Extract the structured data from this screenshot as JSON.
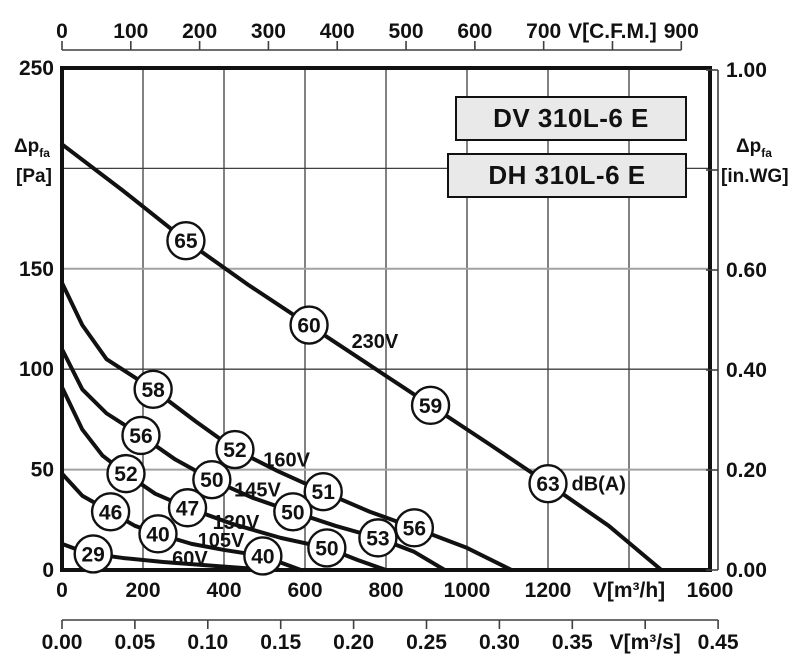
{
  "title_boxes": {
    "box1": "DV 310L-6 E",
    "box2": "DH 310L-6 E"
  },
  "left_axis_title": {
    "dp": "Δp",
    "sub": "fa",
    "unit": "[Pa]"
  },
  "right_axis_title": {
    "dp": "Δp",
    "sub": "fa",
    "unit": "[in.WG]"
  },
  "colors": {
    "curve": "#111111",
    "grid_dark": "#3f3f3f",
    "grid_light": "#a2a2a2",
    "border": "#111111",
    "box_fill": "#e9e9e9",
    "background": "#ffffff",
    "text": "#111111"
  },
  "chart_data": {
    "type": "line",
    "title": "DV 310L-6 E / DH 310L-6 E fan performance curves",
    "x_axis_bottom": {
      "label": "V[m³/h]",
      "range": [
        0,
        1600
      ],
      "tick_step": 200,
      "tick_labels": [
        "0",
        "200",
        "400",
        "600",
        "800",
        "1000",
        "1200",
        "V[m³/h]",
        "1600"
      ],
      "gridlines": true
    },
    "x_axis_bottom_secondary": {
      "label": "V[m³/s]",
      "range": [
        0,
        0.45
      ],
      "tick_step": 0.05,
      "tick_labels": [
        "0.00",
        "0.05",
        "0.10",
        "0.15",
        "0.20",
        "0.25",
        "0.30",
        "0.35",
        "V[m³/s]",
        "0.45"
      ]
    },
    "x_axis_top": {
      "label": "V[C.F.M.]",
      "range": [
        0,
        900
      ],
      "tick_step": 100,
      "tick_labels": [
        "0",
        "100",
        "200",
        "300",
        "400",
        "500",
        "600",
        "700",
        "V[C.F.M.]",
        "900"
      ]
    },
    "y_axis_left": {
      "label": "Δpfa [Pa]",
      "range": [
        0,
        250
      ],
      "tick_step": 50,
      "tick_labels": [
        "0",
        "50",
        "100",
        "150",
        "",
        "250"
      ],
      "gridlines": true
    },
    "y_axis_right": {
      "label": "Δpfa [in.WG]",
      "range": [
        0,
        1.0
      ],
      "tick_step": 0.2,
      "tick_labels": [
        "0.00",
        "0.20",
        "0.40",
        "0.60",
        "",
        "1.00"
      ]
    },
    "annotation": {
      "text": "dB(A)",
      "v": 1258,
      "pa": 43
    },
    "series": [
      {
        "name": "230V",
        "label_pos": {
          "v": 715,
          "pa": 114
        },
        "points": [
          [
            0,
            212
          ],
          [
            150,
            189
          ],
          [
            306,
            164
          ],
          [
            460,
            142
          ],
          [
            610,
            122
          ],
          [
            760,
            102
          ],
          [
            910,
            82
          ],
          [
            1060,
            62
          ],
          [
            1200,
            43
          ],
          [
            1350,
            22
          ],
          [
            1480,
            0
          ]
        ],
        "markers": [
          {
            "db": "65",
            "v": 306,
            "pa": 164
          },
          {
            "db": "60",
            "v": 610,
            "pa": 122
          },
          {
            "db": "59",
            "v": 910,
            "pa": 82
          },
          {
            "db": "63",
            "v": 1200,
            "pa": 43
          }
        ]
      },
      {
        "name": "160V",
        "label_pos": {
          "v": 497,
          "pa": 55
        },
        "points": [
          [
            0,
            143
          ],
          [
            50,
            122
          ],
          [
            110,
            105
          ],
          [
            225,
            90
          ],
          [
            330,
            74
          ],
          [
            427,
            60
          ],
          [
            535,
            49
          ],
          [
            645,
            39
          ],
          [
            760,
            29
          ],
          [
            870,
            21
          ],
          [
            1000,
            11
          ],
          [
            1110,
            0
          ]
        ],
        "markers": [
          {
            "db": "58",
            "v": 225,
            "pa": 90
          },
          {
            "db": "52",
            "v": 427,
            "pa": 60
          },
          {
            "db": "51",
            "v": 645,
            "pa": 39
          },
          {
            "db": "56",
            "v": 870,
            "pa": 21
          }
        ]
      },
      {
        "name": "145V",
        "label_pos": {
          "v": 425,
          "pa": 40
        },
        "points": [
          [
            0,
            110
          ],
          [
            50,
            90
          ],
          [
            110,
            78
          ],
          [
            195,
            67
          ],
          [
            280,
            55
          ],
          [
            370,
            45
          ],
          [
            470,
            36
          ],
          [
            570,
            29
          ],
          [
            675,
            22
          ],
          [
            780,
            16
          ],
          [
            870,
            9
          ],
          [
            945,
            0
          ]
        ],
        "markers": [
          {
            "db": "56",
            "v": 195,
            "pa": 67
          },
          {
            "db": "50",
            "v": 370,
            "pa": 45
          },
          {
            "db": "50",
            "v": 570,
            "pa": 29
          },
          {
            "db": "53",
            "v": 780,
            "pa": 16
          }
        ]
      },
      {
        "name": "130V",
        "label_pos": {
          "v": 372,
          "pa": 24
        },
        "points": [
          [
            0,
            91
          ],
          [
            50,
            70
          ],
          [
            100,
            57
          ],
          [
            158,
            48
          ],
          [
            230,
            38
          ],
          [
            310,
            31
          ],
          [
            420,
            23
          ],
          [
            540,
            16
          ],
          [
            654,
            11
          ],
          [
            730,
            5
          ],
          [
            800,
            0
          ]
        ],
        "markers": [
          {
            "db": "52",
            "v": 158,
            "pa": 48
          },
          {
            "db": "47",
            "v": 310,
            "pa": 31
          },
          {
            "db": "50",
            "v": 654,
            "pa": 11
          }
        ]
      },
      {
        "name": "105V",
        "label_pos": {
          "v": 335,
          "pa": 15
        },
        "points": [
          [
            0,
            48
          ],
          [
            50,
            37
          ],
          [
            120,
            29
          ],
          [
            180,
            22
          ],
          [
            237,
            18
          ],
          [
            320,
            13
          ],
          [
            400,
            10
          ],
          [
            496,
            7
          ],
          [
            590,
            0
          ]
        ],
        "markers": [
          {
            "db": "46",
            "v": 120,
            "pa": 29
          },
          {
            "db": "40",
            "v": 237,
            "pa": 18
          },
          {
            "db": "40",
            "v": 496,
            "pa": 7
          }
        ]
      },
      {
        "name": "60V",
        "label_pos": {
          "v": 272,
          "pa": 6
        },
        "points": [
          [
            0,
            13
          ],
          [
            40,
            10
          ],
          [
            77,
            8
          ],
          [
            150,
            6
          ],
          [
            250,
            4
          ],
          [
            380,
            2
          ],
          [
            515,
            0
          ]
        ],
        "markers": [
          {
            "db": "29",
            "v": 77,
            "pa": 8
          }
        ]
      }
    ]
  }
}
